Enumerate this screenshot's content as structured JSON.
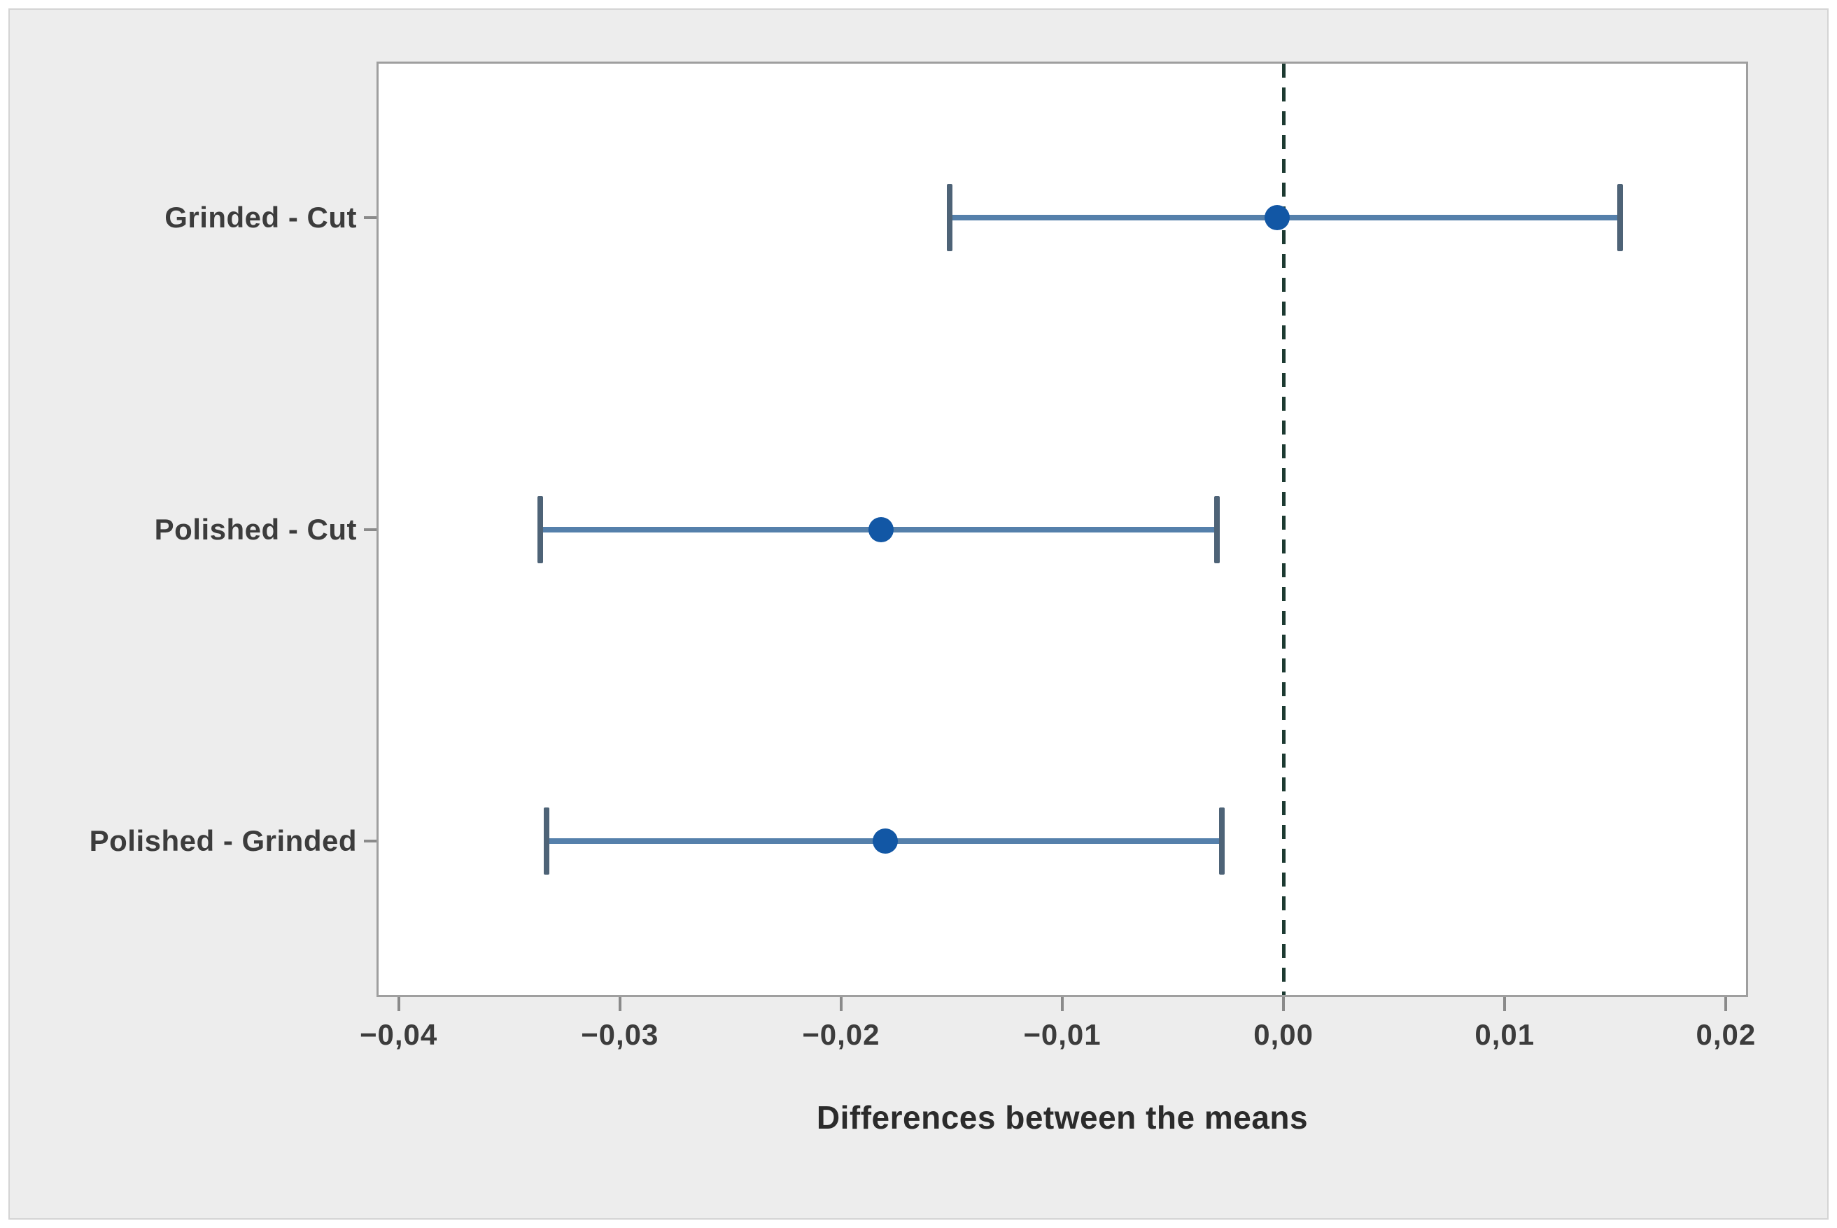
{
  "window": {
    "page_background": "#ffffff",
    "canvas_background": "#ededed"
  },
  "chart_data": {
    "type": "scatter",
    "subtype": "horizontal-interval-plot",
    "title": "",
    "xlabel": "Differences between the means",
    "ylabel": "",
    "categories": [
      "Grinded - Cut",
      "Polished - Cut",
      "Polished - Grinded"
    ],
    "intervals": [
      {
        "category": "Grinded - Cut",
        "lower": -0.0151,
        "center": -0.0003,
        "upper": 0.0152
      },
      {
        "category": "Polished - Cut",
        "lower": -0.0336,
        "center": -0.0182,
        "upper": -0.003
      },
      {
        "category": "Polished - Grinded",
        "lower": -0.0333,
        "center": -0.018,
        "upper": -0.0028
      }
    ],
    "xlim": [
      -0.041,
      0.021
    ],
    "x_ticks": [
      {
        "value": -0.04,
        "label": "−0,04"
      },
      {
        "value": -0.03,
        "label": "−0,03"
      },
      {
        "value": -0.02,
        "label": "−0,02"
      },
      {
        "value": -0.01,
        "label": "−0,01"
      },
      {
        "value": 0.0,
        "label": "0,00"
      },
      {
        "value": 0.01,
        "label": "0,01"
      },
      {
        "value": 0.02,
        "label": "0,02"
      }
    ],
    "reference_line": {
      "x": 0.0,
      "style": "dashed"
    },
    "grid": false,
    "legend": "none",
    "decimal_separator": ",",
    "colors": {
      "interval_line": "#5580ab",
      "interval_cap": "#4e6377",
      "marker": "#1257a5",
      "reference_line": "#1c3a31",
      "frame_border": "#9f9f9f",
      "plot_background": "#ffffff",
      "canvas_background": "#ededed",
      "tick_mark": "#8a8a8a",
      "text": "#3c3c3c",
      "title_text": "#2b2b2b"
    }
  }
}
